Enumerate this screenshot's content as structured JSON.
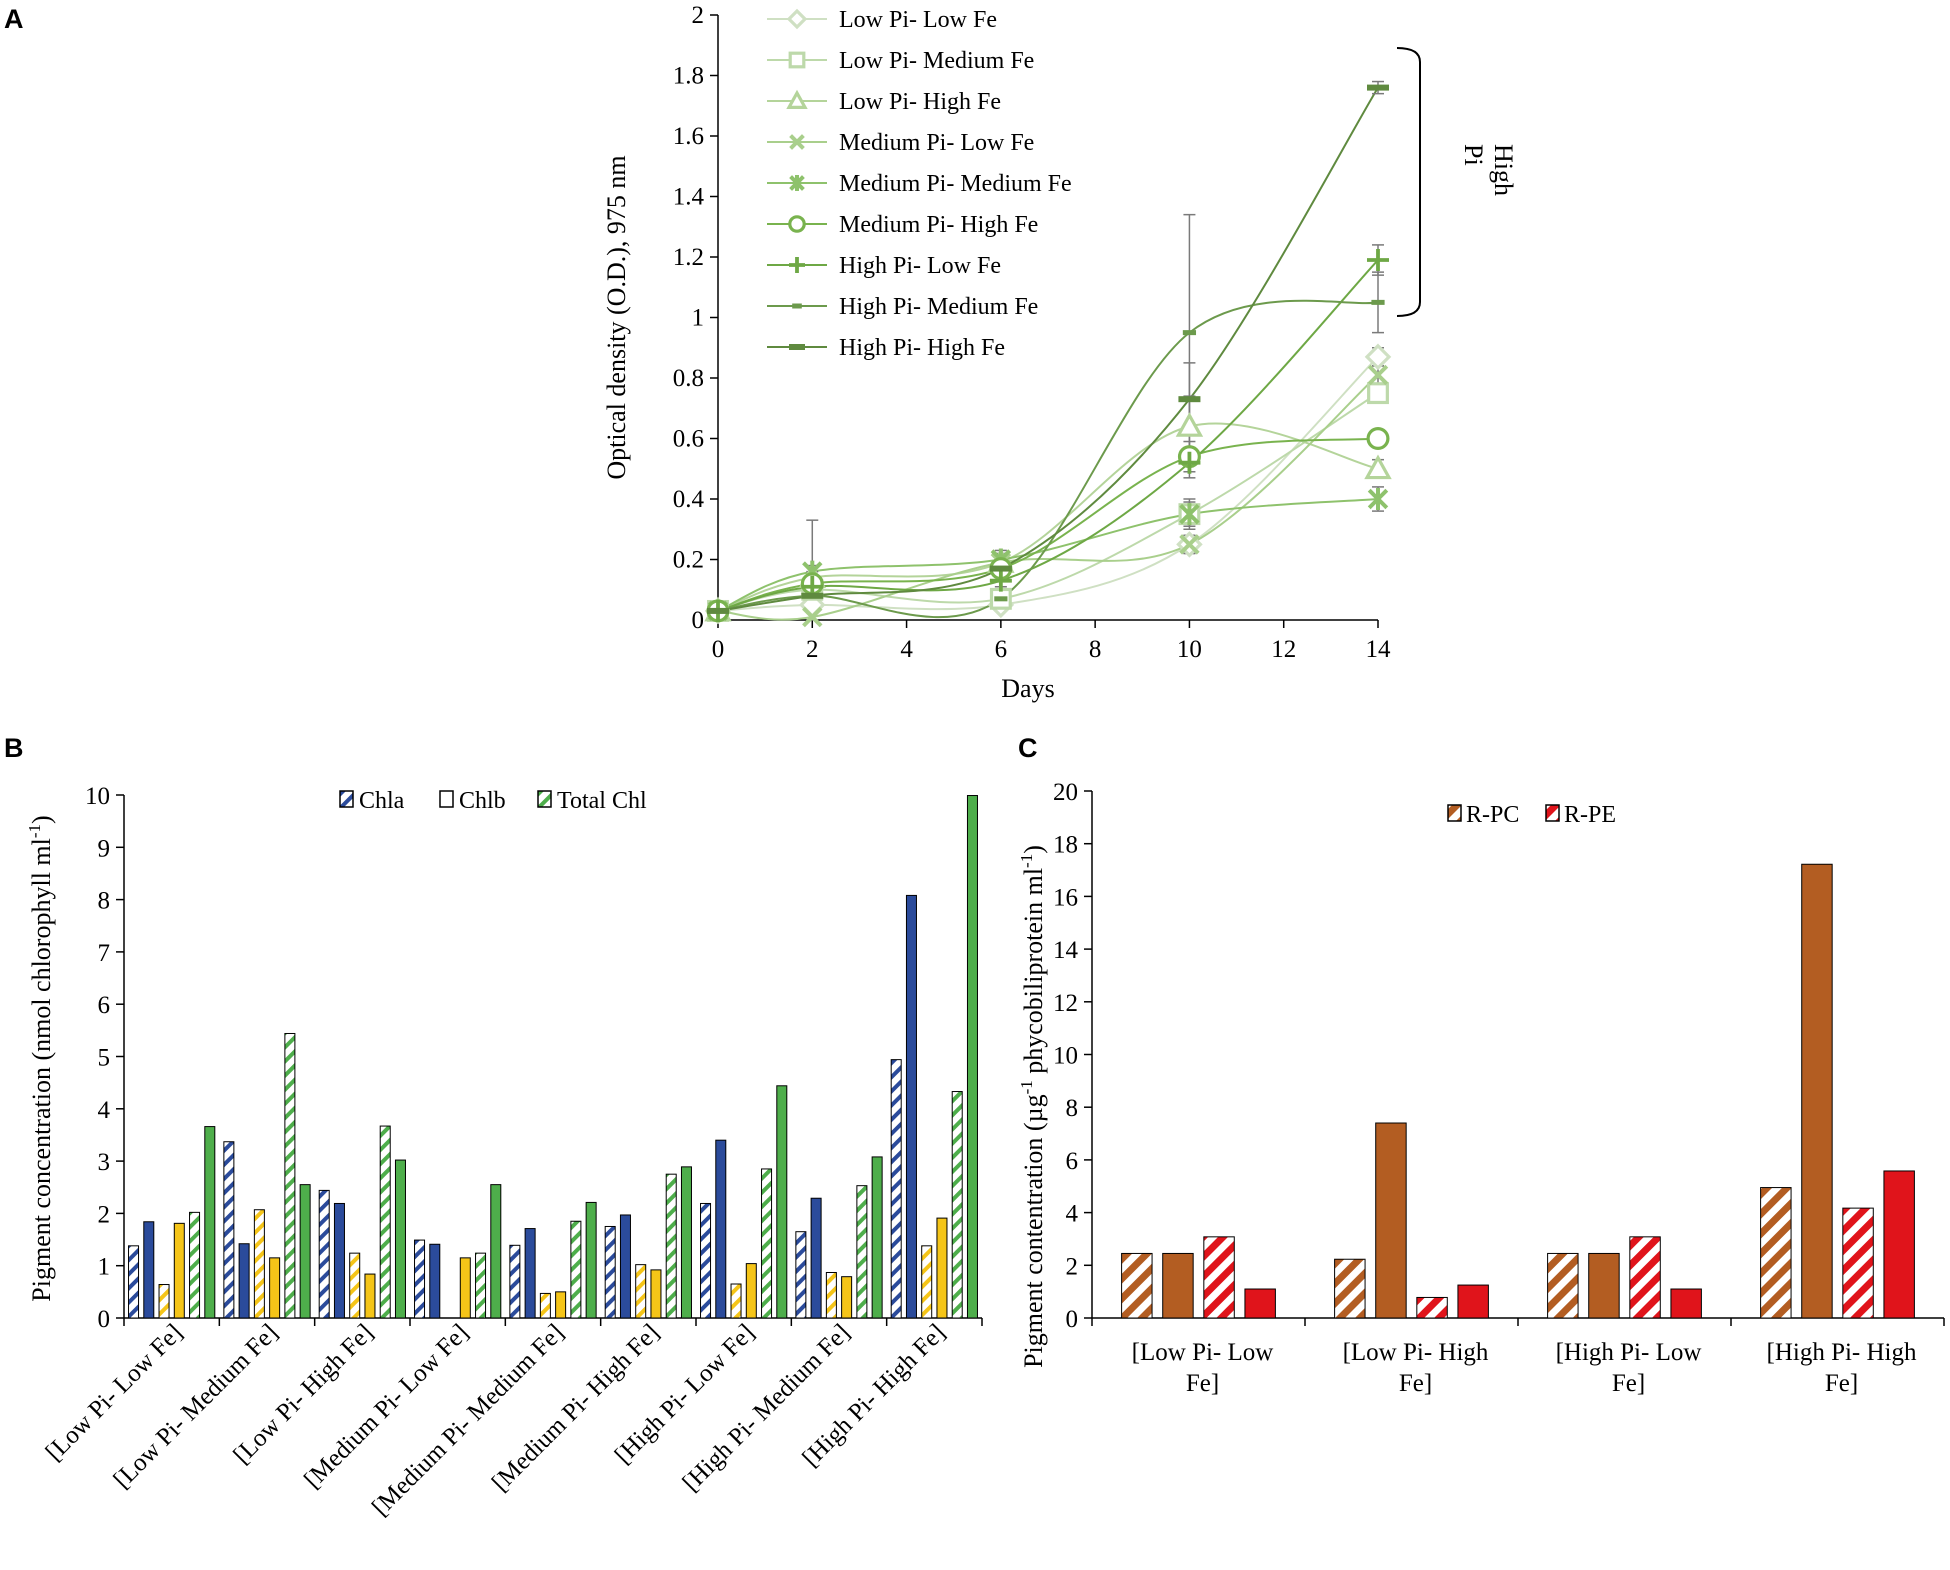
{
  "panels": {
    "a": "A",
    "b": "B",
    "c": "C"
  },
  "chart_data": [
    {
      "id": "A",
      "type": "line",
      "title": "",
      "xlabel": "Days",
      "ylabel": "Optical density (O.D.), 975 nm",
      "xlim": [
        0,
        14
      ],
      "ylim": [
        0,
        2
      ],
      "x": [
        0,
        2,
        6,
        10,
        14
      ],
      "xticks": [
        "0",
        "2",
        "4",
        "6",
        "8",
        "10",
        "12",
        "14"
      ],
      "yticks": [
        "0",
        "0.2",
        "0.4",
        "0.6",
        "0.8",
        "1",
        "1.2",
        "1.4",
        "1.6",
        "1.8",
        "2"
      ],
      "annotation": "High Pi",
      "series": [
        {
          "name": "Low Pi- Low Fe",
          "marker": "diamond",
          "color": "#cfe0c3",
          "values": [
            0.03,
            0.05,
            0.05,
            0.25,
            0.87
          ],
          "errors": [
            0.01,
            0.01,
            0.01,
            0.03,
            0.03
          ]
        },
        {
          "name": "Low Pi- Medium Fe",
          "marker": "square",
          "color": "#bdd9aa",
          "values": [
            0.03,
            0.1,
            0.07,
            0.35,
            0.75
          ],
          "errors": [
            0.01,
            0.02,
            0.01,
            0.05,
            0.03
          ]
        },
        {
          "name": "Low Pi- High Fe",
          "marker": "triangle",
          "color": "#b4d49a",
          "values": [
            0.03,
            0.14,
            0.19,
            0.64,
            0.5
          ],
          "errors": [
            0.01,
            0.02,
            0.03,
            0.1,
            0.03
          ]
        },
        {
          "name": "Medium Pi- Low Fe",
          "marker": "x",
          "color": "#a9cf8c",
          "values": [
            0.03,
            0.01,
            0.19,
            0.25,
            0.81
          ],
          "errors": [
            0.01,
            0.01,
            0.02,
            0.03,
            0.03
          ]
        },
        {
          "name": "Medium Pi- Medium Fe",
          "marker": "star",
          "color": "#8ec26c",
          "values": [
            0.03,
            0.16,
            0.2,
            0.35,
            0.4
          ],
          "errors": [
            0.01,
            0.02,
            0.03,
            0.04,
            0.04
          ]
        },
        {
          "name": "Medium Pi- High Fe",
          "marker": "circle",
          "color": "#79b34e",
          "values": [
            0.03,
            0.12,
            0.17,
            0.54,
            0.6
          ],
          "errors": [
            0.01,
            0.02,
            0.03,
            0.05,
            0.03
          ]
        },
        {
          "name": "High Pi- Low Fe",
          "marker": "plus",
          "color": "#6ea845",
          "values": [
            0.03,
            0.11,
            0.13,
            0.52,
            1.19
          ],
          "errors": [
            0.01,
            0.02,
            0.02,
            0.05,
            0.05
          ]
        },
        {
          "name": "High Pi- Medium Fe",
          "marker": "dash",
          "color": "#6c9a4c",
          "values": [
            0.03,
            0.08,
            0.07,
            0.95,
            1.05
          ],
          "errors": [
            0.01,
            0.25,
            0.02,
            0.39,
            0.1
          ]
        },
        {
          "name": "High Pi- High Fe",
          "marker": "bar",
          "color": "#5f8a3f",
          "values": [
            0.03,
            0.08,
            0.17,
            0.73,
            1.76
          ],
          "errors": [
            0.01,
            0.02,
            0.04,
            0.12,
            0.02
          ]
        }
      ]
    },
    {
      "id": "B",
      "type": "bar",
      "title": "",
      "xlabel": "",
      "ylabel": "Pigment concentration (nmol chlorophyll ml",
      "ylabel_sup": "-1",
      "ylabel_end": ")",
      "ylim": [
        0,
        10
      ],
      "yticks": [
        "0",
        "1",
        "2",
        "3",
        "4",
        "5",
        "6",
        "7",
        "8",
        "9",
        "10"
      ],
      "legend": [
        "Chla",
        "Chlb",
        "Total Chl"
      ],
      "categories": [
        "[Low Pi- Low Fe]",
        "[Low Pi- Medium Fe]",
        "[Low Pi- High Fe]",
        "[Medium Pi- Low Fe]",
        "[Medium Pi- Medium Fe]",
        "[Medium Pi- High Fe]",
        "[High Pi- Low Fe]",
        "[High Pi- Medium Fe]",
        "[High Pi- High Fe]"
      ],
      "series": [
        {
          "name": "Chla (patterned)",
          "style": "hatch-blue",
          "values": [
            1.38,
            3.37,
            2.44,
            1.49,
            1.39,
            1.75,
            2.19,
            1.65,
            4.94
          ]
        },
        {
          "name": "Chla",
          "style": "solid-blue",
          "values": [
            1.84,
            1.42,
            2.19,
            1.41,
            1.71,
            1.97,
            3.4,
            2.29,
            8.08
          ]
        },
        {
          "name": "Chlb (patterned)",
          "style": "hatch-yellow",
          "values": [
            0.64,
            2.07,
            1.24,
            0.0,
            0.47,
            1.02,
            0.65,
            0.87,
            1.38
          ]
        },
        {
          "name": "Chlb",
          "style": "solid-yellow",
          "values": [
            1.81,
            1.15,
            0.84,
            1.15,
            0.5,
            0.92,
            1.04,
            0.79,
            1.91
          ]
        },
        {
          "name": "Total Chl (patterned)",
          "style": "hatch-green",
          "values": [
            2.02,
            5.44,
            3.67,
            1.24,
            1.85,
            2.75,
            2.85,
            2.53,
            4.33
          ]
        },
        {
          "name": "Total Chl",
          "style": "solid-green",
          "values": [
            3.66,
            2.55,
            3.02,
            2.55,
            2.21,
            2.89,
            4.44,
            3.08,
            9.99
          ]
        }
      ]
    },
    {
      "id": "C",
      "type": "bar",
      "title": "",
      "xlabel": "",
      "ylabel": "Pigment contentration (µg",
      "ylabel_sup": "-1",
      "ylabel_end": " phycobiliprotein ml",
      "ylabel_sup2": "-1",
      "ylabel_end2": ")",
      "ylim": [
        0,
        20
      ],
      "yticks": [
        "0",
        "2",
        "4",
        "6",
        "8",
        "10",
        "12",
        "14",
        "16",
        "18",
        "20"
      ],
      "legend": [
        "R-PC",
        "R-PE"
      ],
      "categories": [
        [
          "[Low Pi- Low",
          "Fe]"
        ],
        [
          "[Low Pi- High",
          "Fe]"
        ],
        [
          "[High Pi- Low",
          "Fe]"
        ],
        [
          "[High Pi- High",
          "Fe]"
        ]
      ],
      "series": [
        {
          "name": "R-PC (patterned)",
          "style": "hatch-brown",
          "values": [
            2.45,
            2.23,
            2.45,
            4.95
          ]
        },
        {
          "name": "R-PC",
          "style": "solid-brown",
          "values": [
            2.45,
            7.4,
            2.45,
            17.22
          ]
        },
        {
          "name": "R-PE (patterned)",
          "style": "hatch-red",
          "values": [
            3.08,
            0.78,
            3.08,
            4.17
          ]
        },
        {
          "name": "R-PE",
          "style": "solid-red",
          "values": [
            1.1,
            1.25,
            1.1,
            5.58
          ]
        }
      ]
    }
  ]
}
